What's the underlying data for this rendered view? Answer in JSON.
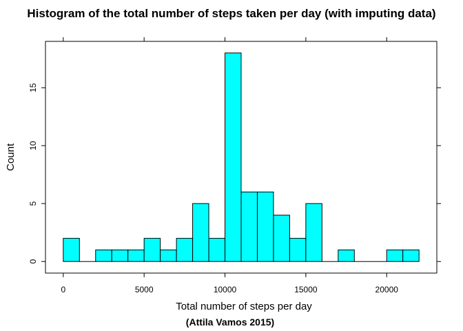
{
  "chart_data": {
    "type": "bar",
    "title": "Histogram of the total number of steps taken per day (with imputing data)",
    "xlabel": "Total number of steps per day",
    "ylabel": "Count",
    "caption": "(Attila Vamos 2015)",
    "bin_width": 1000,
    "bins": [
      {
        "start": 0,
        "end": 1000,
        "count": 2
      },
      {
        "start": 1000,
        "end": 2000,
        "count": 0
      },
      {
        "start": 2000,
        "end": 3000,
        "count": 1
      },
      {
        "start": 3000,
        "end": 4000,
        "count": 1
      },
      {
        "start": 4000,
        "end": 5000,
        "count": 1
      },
      {
        "start": 5000,
        "end": 6000,
        "count": 2
      },
      {
        "start": 6000,
        "end": 7000,
        "count": 1
      },
      {
        "start": 7000,
        "end": 8000,
        "count": 2
      },
      {
        "start": 8000,
        "end": 9000,
        "count": 5
      },
      {
        "start": 9000,
        "end": 10000,
        "count": 2
      },
      {
        "start": 10000,
        "end": 11000,
        "count": 18
      },
      {
        "start": 11000,
        "end": 12000,
        "count": 6
      },
      {
        "start": 12000,
        "end": 13000,
        "count": 6
      },
      {
        "start": 13000,
        "end": 14000,
        "count": 4
      },
      {
        "start": 14000,
        "end": 15000,
        "count": 2
      },
      {
        "start": 15000,
        "end": 16000,
        "count": 5
      },
      {
        "start": 16000,
        "end": 17000,
        "count": 0
      },
      {
        "start": 17000,
        "end": 18000,
        "count": 1
      },
      {
        "start": 18000,
        "end": 19000,
        "count": 0
      },
      {
        "start": 19000,
        "end": 20000,
        "count": 0
      },
      {
        "start": 20000,
        "end": 21000,
        "count": 1
      },
      {
        "start": 21000,
        "end": 22000,
        "count": 1
      }
    ],
    "x_ticks": [
      0,
      5000,
      10000,
      15000,
      20000
    ],
    "y_ticks": [
      0,
      5,
      10,
      15
    ],
    "xlim": [
      -1100,
      23100
    ],
    "ylim": [
      -1.0,
      19.0
    ],
    "bar_color": "#00FFFF",
    "bar_edge_color": "#000000",
    "grid": false,
    "legend": false
  }
}
